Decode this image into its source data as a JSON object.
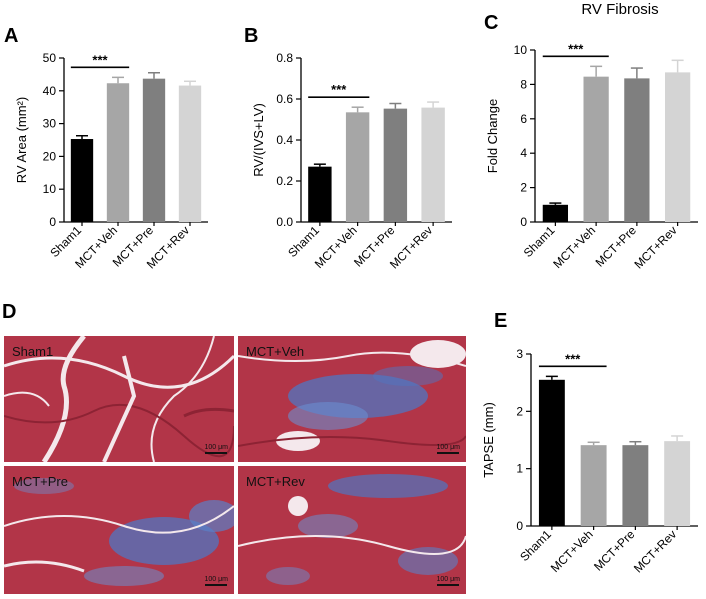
{
  "figure": {
    "panels": {
      "A": {
        "letter": "A"
      },
      "B": {
        "letter": "B"
      },
      "C": {
        "letter": "C",
        "title": "RV Fibrosis"
      },
      "D": {
        "letter": "D"
      },
      "E": {
        "letter": "E"
      }
    },
    "micrographs": [
      {
        "label": "Sham1",
        "scale": "100 μm"
      },
      {
        "label": "MCT+Veh",
        "scale": "100 μm"
      },
      {
        "label": "MCT+Pre",
        "scale": "100 μm"
      },
      {
        "label": "MCT+Rev",
        "scale": "100 μm"
      }
    ],
    "colors": {
      "sham": "#000000",
      "veh": "#a6a6a6",
      "pre": "#7f7f7f",
      "rev": "#d4d4d4",
      "tissue": "#b23548",
      "collagen": "#4f76c2"
    }
  },
  "chart_data": [
    {
      "panel": "A",
      "type": "bar",
      "categories": [
        "Sham1",
        "MCT+Veh",
        "MCT+Pre",
        "MCT+Rev"
      ],
      "values": [
        25.3,
        42.3,
        43.7,
        41.6
      ],
      "errors": [
        1.0,
        1.8,
        1.8,
        1.3
      ],
      "ylabel": "RV Area (mm²)",
      "ylim": [
        0,
        50
      ],
      "yticks": [
        "0",
        "10",
        "20",
        "30",
        "40",
        "50"
      ],
      "significance": {
        "from": 0,
        "to": 1,
        "label": "***"
      },
      "grid": false
    },
    {
      "panel": "B",
      "type": "bar",
      "categories": [
        "Sham1",
        "MCT+Veh",
        "MCT+Pre",
        "MCT+Rev"
      ],
      "values": [
        0.27,
        0.535,
        0.553,
        0.558
      ],
      "errors": [
        0.012,
        0.025,
        0.025,
        0.027
      ],
      "ylabel": "RV/(IVS+LV)",
      "ylim": [
        0,
        0.8
      ],
      "yticks": [
        "0.0",
        "0.2",
        "0.4",
        "0.6",
        "0.8"
      ],
      "significance": {
        "from": 0,
        "to": 1,
        "label": "***"
      },
      "grid": false
    },
    {
      "panel": "C",
      "type": "bar",
      "title": "RV Fibrosis",
      "categories": [
        "Sham1",
        "MCT+Veh",
        "MCT+Pre",
        "MCT+Rev"
      ],
      "values": [
        1.0,
        8.45,
        8.35,
        8.7
      ],
      "errors": [
        0.1,
        0.6,
        0.6,
        0.7
      ],
      "ylabel": "Fold Change",
      "ylim": [
        0,
        10
      ],
      "yticks": [
        "0",
        "2",
        "4",
        "6",
        "8",
        "10"
      ],
      "significance": {
        "from": 0,
        "to": 1,
        "label": "***"
      },
      "grid": false
    },
    {
      "panel": "E",
      "type": "bar",
      "categories": [
        "Sham1",
        "MCT+Veh",
        "MCT+Pre",
        "MCT+Rev"
      ],
      "values": [
        2.55,
        1.41,
        1.41,
        1.48
      ],
      "errors": [
        0.06,
        0.05,
        0.06,
        0.09
      ],
      "ylabel": "TAPSE (mm)",
      "ylim": [
        0,
        3
      ],
      "yticks": [
        "0",
        "1",
        "2",
        "3"
      ],
      "significance": {
        "from": 0,
        "to": 1,
        "label": "***"
      },
      "grid": false
    }
  ]
}
